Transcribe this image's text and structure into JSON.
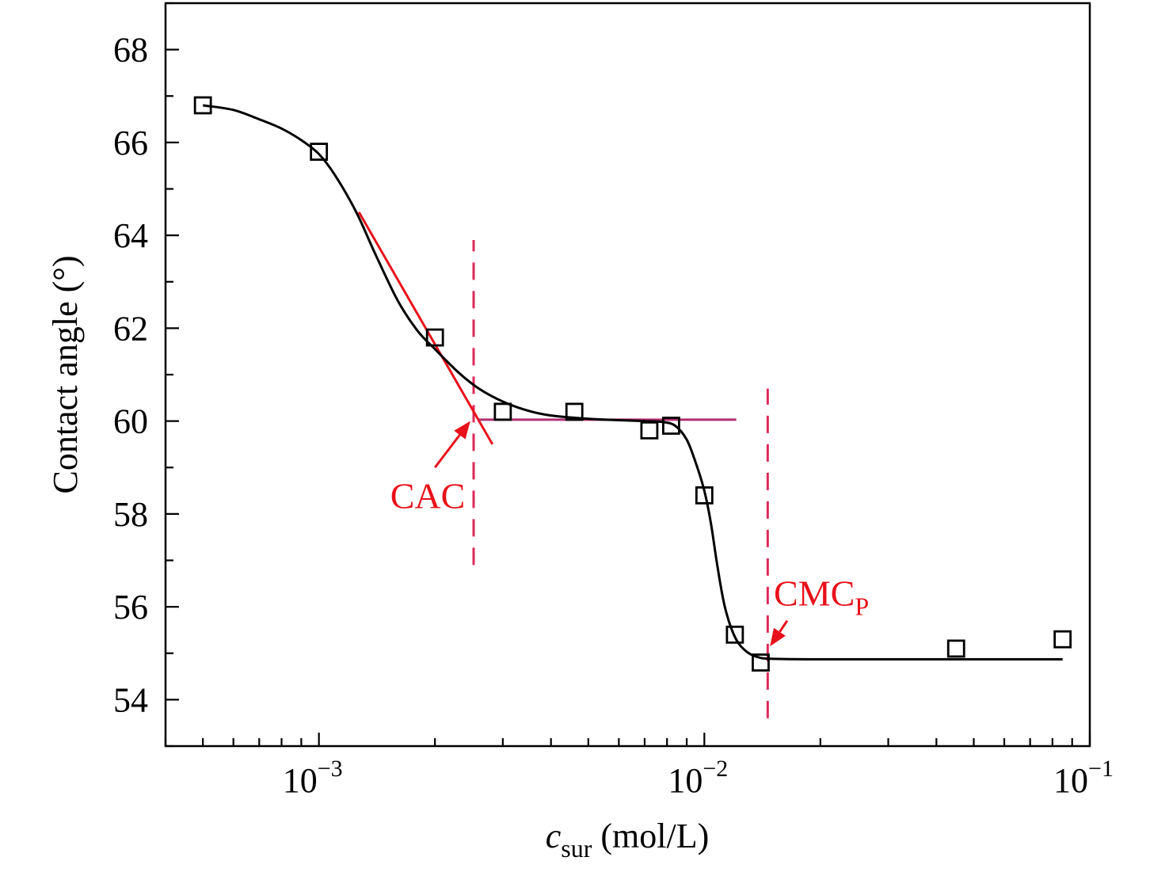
{
  "chart_data": {
    "type": "scatter",
    "xlabel": {
      "main": "c",
      "sub": "sur",
      "rest": " (mol/L)"
    },
    "ylabel": "Contact angle (°)",
    "x_scale": "log",
    "xlim": [
      0.0004,
      0.1
    ],
    "ylim": [
      53,
      69
    ],
    "x_ticks": [
      {
        "value": 0.001,
        "base": "10",
        "exp": "−3"
      },
      {
        "value": 0.01,
        "base": "10",
        "exp": "−2"
      },
      {
        "value": 0.1,
        "base": "10",
        "exp": "−1"
      }
    ],
    "y_ticks": [
      {
        "value": 54,
        "label": "54"
      },
      {
        "value": 56,
        "label": "56"
      },
      {
        "value": 58,
        "label": "58"
      },
      {
        "value": 60,
        "label": "60"
      },
      {
        "value": 62,
        "label": "62"
      },
      {
        "value": 64,
        "label": "64"
      },
      {
        "value": 66,
        "label": "66"
      },
      {
        "value": 68,
        "label": "68"
      }
    ],
    "points": [
      {
        "x": 0.0005,
        "y": 66.8
      },
      {
        "x": 0.001,
        "y": 65.8
      },
      {
        "x": 0.002,
        "y": 61.8
      },
      {
        "x": 0.003,
        "y": 60.2
      },
      {
        "x": 0.0046,
        "y": 60.2
      },
      {
        "x": 0.0072,
        "y": 59.8
      },
      {
        "x": 0.0082,
        "y": 59.9
      },
      {
        "x": 0.01,
        "y": 58.4
      },
      {
        "x": 0.012,
        "y": 55.4
      },
      {
        "x": 0.014,
        "y": 54.8
      },
      {
        "x": 0.045,
        "y": 55.1
      },
      {
        "x": 0.085,
        "y": 55.3
      }
    ],
    "fit_curve": [
      [
        0.0005,
        66.8
      ],
      [
        0.0006,
        66.7
      ],
      [
        0.0007,
        66.5
      ],
      [
        0.0008,
        66.3
      ],
      [
        0.0009,
        66.05
      ],
      [
        0.001,
        65.75
      ],
      [
        0.0011,
        65.3
      ],
      [
        0.00125,
        64.5
      ],
      [
        0.0014,
        63.6
      ],
      [
        0.0016,
        62.6
      ],
      [
        0.0018,
        61.95
      ],
      [
        0.002,
        61.55
      ],
      [
        0.0023,
        61.05
      ],
      [
        0.0026,
        60.7
      ],
      [
        0.003,
        60.42
      ],
      [
        0.0035,
        60.22
      ],
      [
        0.004,
        60.12
      ],
      [
        0.005,
        60.05
      ],
      [
        0.006,
        60.02
      ],
      [
        0.007,
        60.0
      ],
      [
        0.0078,
        59.98
      ],
      [
        0.0084,
        59.9
      ],
      [
        0.009,
        59.6
      ],
      [
        0.0095,
        59.1
      ],
      [
        0.01,
        58.5
      ],
      [
        0.0104,
        57.8
      ],
      [
        0.0108,
        56.9
      ],
      [
        0.0113,
        56.0
      ],
      [
        0.012,
        55.35
      ],
      [
        0.0128,
        55.05
      ],
      [
        0.0137,
        54.92
      ],
      [
        0.015,
        54.88
      ],
      [
        0.02,
        54.87
      ],
      [
        0.04,
        54.87
      ],
      [
        0.06,
        54.87
      ],
      [
        0.085,
        54.87
      ]
    ],
    "tangent_lines": [
      {
        "x1": 0.00127,
        "y1": 64.5,
        "x2": 0.00282,
        "y2": 59.5,
        "color": "#e8101a"
      },
      {
        "x1": 0.0026,
        "y1": 60.03,
        "x2": 0.0121,
        "y2": 60.03,
        "color": "#b03070"
      }
    ],
    "vlines": [
      {
        "x": 0.00252,
        "y1": 56.9,
        "y2": 63.9,
        "color": "#dd2a5a"
      },
      {
        "x": 0.0146,
        "y1": 53.6,
        "y2": 60.7,
        "color": "#dd2a5a"
      }
    ],
    "annotations": [
      {
        "text": "CAC",
        "sub": "",
        "text_x": 0.00185,
        "text_y": 58.4,
        "arrow_from": [
          0.002,
          59.0
        ],
        "arrow_to": [
          0.00247,
          60.0
        ],
        "color": "#e8101a"
      },
      {
        "text": "CMC",
        "sub": "P",
        "text_x": 0.0183,
        "text_y": 56.3,
        "arrow_from": [
          0.0164,
          55.7
        ],
        "arrow_to": [
          0.0148,
          55.15
        ],
        "color": "#e8101a"
      }
    ],
    "grid": false,
    "legend": "none"
  }
}
